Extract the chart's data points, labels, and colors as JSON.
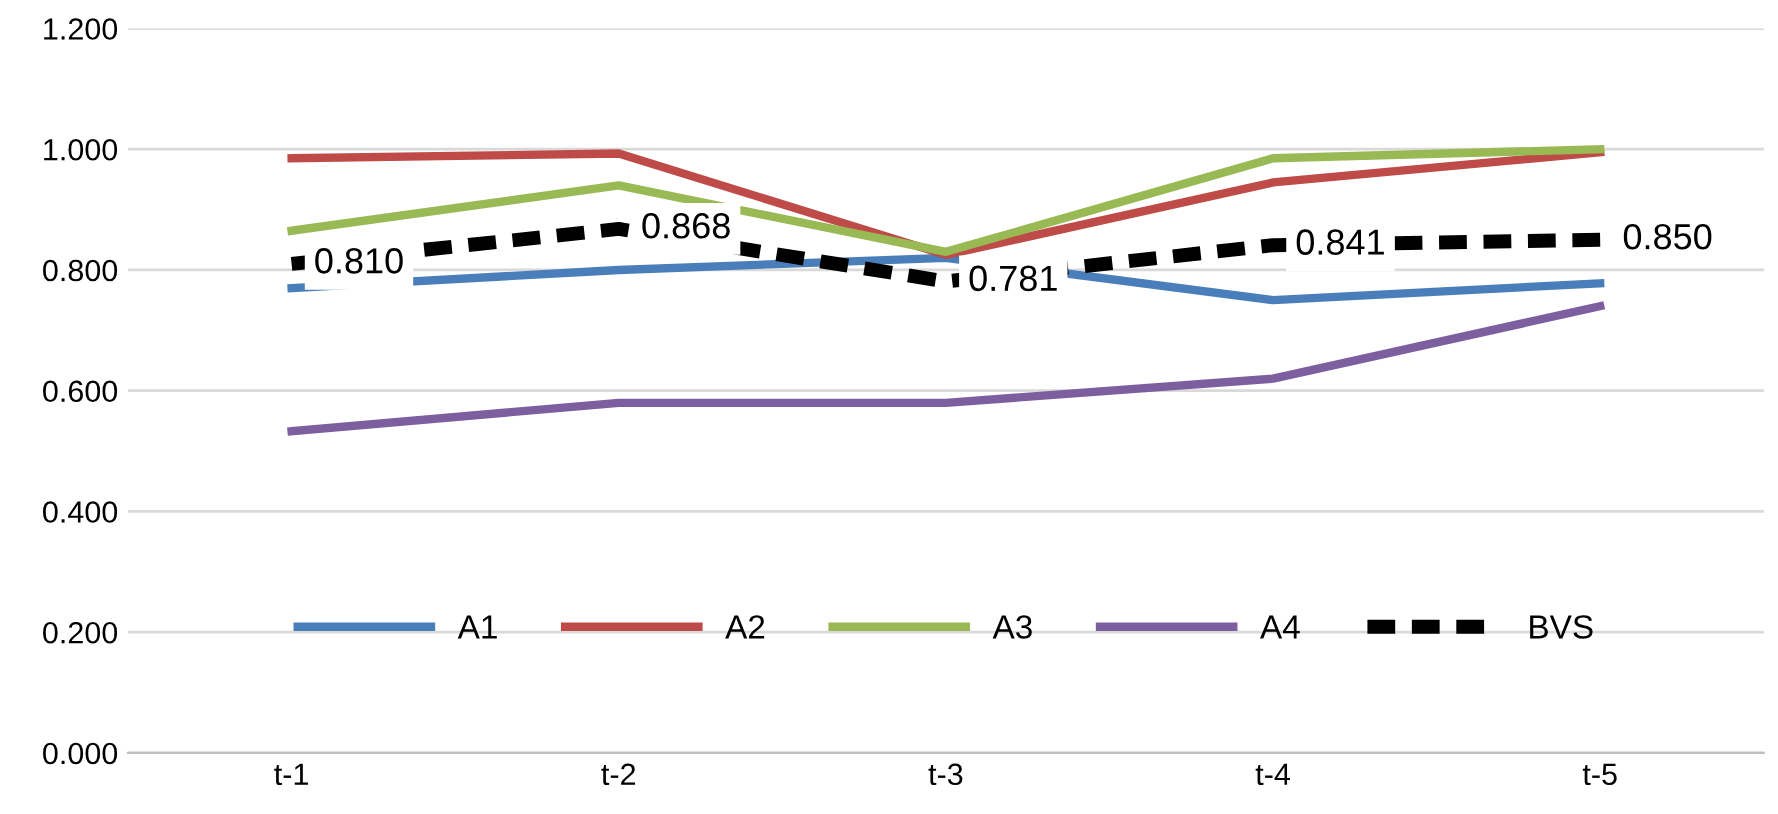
{
  "chart_data": {
    "type": "line",
    "categories": [
      "t-1",
      "t-2",
      "t-3",
      "t-4",
      "t-5"
    ],
    "series": [
      {
        "name": "A1",
        "color": "#4a7ebb",
        "values": [
          0.77,
          0.8,
          0.82,
          0.75,
          0.778
        ]
      },
      {
        "name": "A2",
        "color": "#be4b48",
        "values": [
          0.985,
          0.993,
          0.825,
          0.945,
          0.995
        ]
      },
      {
        "name": "A3",
        "color": "#98b954",
        "values": [
          0.865,
          0.94,
          0.83,
          0.985,
          1.0
        ]
      },
      {
        "name": "A4",
        "color": "#7d5fa0",
        "values": [
          0.533,
          0.58,
          0.58,
          0.62,
          0.74
        ]
      },
      {
        "name": "BVS",
        "color": "#000000",
        "line_style": "dashed",
        "values": [
          0.81,
          0.868,
          0.781,
          0.841,
          0.85
        ],
        "value_labels": [
          "0.810",
          "0.868",
          "0.781",
          "0.841",
          "0.850"
        ]
      }
    ],
    "ylim": [
      0,
      1.2
    ],
    "yticks": [
      {
        "value": 0,
        "label": "0.000"
      },
      {
        "value": 0.2,
        "label": "0.200"
      },
      {
        "value": 0.4,
        "label": "0.400"
      },
      {
        "value": 0.6,
        "label": "0.600"
      },
      {
        "value": 0.8,
        "label": "0.800"
      },
      {
        "value": 1.0,
        "label": "1.000"
      },
      {
        "value": 1.2,
        "label": "1.200"
      }
    ],
    "grid": "y",
    "legend": "bottom",
    "marker": "none"
  }
}
